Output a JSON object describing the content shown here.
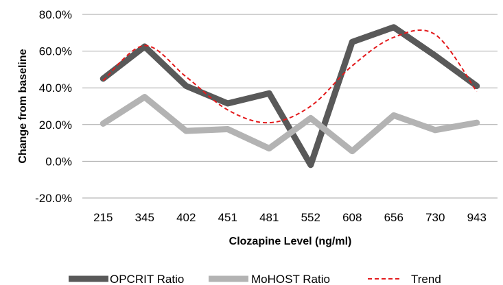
{
  "chart_data": {
    "type": "line",
    "title": "",
    "xlabel": "Clozapine Level (ng/ml)",
    "ylabel": "Change from baseline",
    "categories": [
      "215",
      "345",
      "402",
      "451",
      "481",
      "552",
      "608",
      "656",
      "730",
      "943"
    ],
    "y_ticks": [
      "80.0%",
      "60.0%",
      "40.0%",
      "20.0%",
      "0.0%",
      "-20.0%"
    ],
    "ylim": [
      -20,
      80
    ],
    "grid": "horizontal",
    "legend_position": "bottom",
    "series": [
      {
        "name": "OPCRIT Ratio",
        "color": "#595959",
        "style": "solid-thick",
        "values": [
          45,
          62.5,
          41,
          31.5,
          37,
          -2,
          65,
          73,
          57.5,
          41
        ]
      },
      {
        "name": "MoHOST Ratio",
        "color": "#b3b3b3",
        "style": "solid-thick",
        "values": [
          20.5,
          35,
          16.5,
          17.5,
          7,
          23.5,
          5.5,
          25,
          17,
          21
        ]
      },
      {
        "name": "Trend",
        "color": "#e31a1c",
        "style": "dashed",
        "values": [
          44,
          63,
          46,
          28,
          21,
          30,
          52,
          67.5,
          69,
          38
        ]
      }
    ]
  }
}
